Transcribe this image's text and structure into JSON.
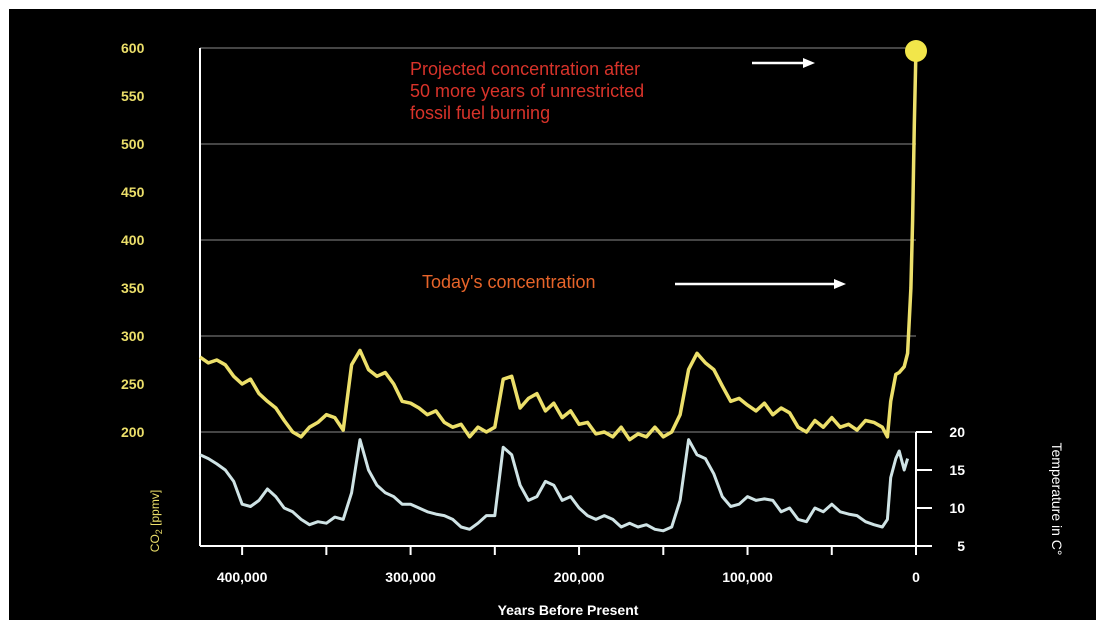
{
  "chart_data": {
    "type": "line",
    "xlabel": "Years Before Present",
    "x_ticks": [
      "400,000",
      "300,000",
      "200,000",
      "100,000",
      "0"
    ],
    "xlim": [
      425000,
      0
    ],
    "co2_axis": {
      "label": "CO2 [ppmv]",
      "label_main": "CO",
      "label_sub": "2",
      "label_rest": " [ppmv]",
      "ticks": [
        "600",
        "550",
        "500",
        "450",
        "400",
        "350",
        "300",
        "250",
        "200"
      ],
      "ylim": [
        200,
        600
      ]
    },
    "temp_axis": {
      "label": "Temperature in C°",
      "ticks": [
        "20",
        "15",
        "10",
        "5"
      ],
      "ylim": [
        5,
        20
      ]
    },
    "grid": true,
    "annotations": {
      "projected_line1": "Projected concentration after",
      "projected_line2": "50 more years of unrestricted",
      "projected_line3": "fossil fuel burning",
      "today": "Today's concentration"
    },
    "projected_point": {
      "x": 0,
      "y": 600
    },
    "series": [
      {
        "axis": "co2",
        "color": "#ecdf6a",
        "x": [
          425000,
          420000,
          415000,
          410000,
          405000,
          400000,
          395000,
          390000,
          385000,
          380000,
          375000,
          370000,
          365000,
          360000,
          355000,
          350000,
          345000,
          340000,
          335000,
          330000,
          325000,
          320000,
          315000,
          310000,
          305000,
          300000,
          295000,
          290000,
          285000,
          280000,
          275000,
          270000,
          265000,
          260000,
          255000,
          250000,
          245000,
          240000,
          235000,
          230000,
          225000,
          220000,
          215000,
          210000,
          205000,
          200000,
          195000,
          190000,
          185000,
          180000,
          175000,
          170000,
          165000,
          160000,
          155000,
          150000,
          145000,
          140000,
          135000,
          130000,
          125000,
          120000,
          115000,
          110000,
          105000,
          100000,
          95000,
          90000,
          85000,
          80000,
          75000,
          70000,
          65000,
          60000,
          55000,
          50000,
          45000,
          40000,
          35000,
          30000,
          25000,
          20000,
          17000,
          15000,
          12000,
          10000,
          7000,
          5000,
          3000,
          2000,
          1000,
          0
        ],
        "y": [
          278,
          272,
          275,
          270,
          258,
          250,
          255,
          240,
          232,
          225,
          212,
          200,
          195,
          205,
          210,
          218,
          215,
          202,
          270,
          285,
          265,
          258,
          262,
          250,
          232,
          230,
          225,
          218,
          222,
          210,
          205,
          208,
          195,
          205,
          200,
          205,
          255,
          258,
          225,
          235,
          240,
          222,
          230,
          215,
          222,
          208,
          210,
          198,
          200,
          195,
          205,
          192,
          198,
          195,
          205,
          195,
          200,
          218,
          265,
          282,
          272,
          265,
          248,
          232,
          235,
          228,
          222,
          230,
          218,
          225,
          220,
          205,
          200,
          212,
          205,
          215,
          205,
          208,
          202,
          212,
          210,
          205,
          195,
          232,
          260,
          262,
          268,
          282,
          350,
          420,
          520,
          600
        ]
      },
      {
        "axis": "temp",
        "color": "#cfe3e5",
        "x": [
          425000,
          420000,
          415000,
          410000,
          405000,
          400000,
          395000,
          390000,
          385000,
          380000,
          375000,
          370000,
          365000,
          360000,
          355000,
          350000,
          345000,
          340000,
          335000,
          330000,
          325000,
          320000,
          315000,
          310000,
          305000,
          300000,
          295000,
          290000,
          285000,
          280000,
          275000,
          270000,
          265000,
          260000,
          255000,
          250000,
          245000,
          240000,
          235000,
          230000,
          225000,
          220000,
          215000,
          210000,
          205000,
          200000,
          195000,
          190000,
          185000,
          180000,
          175000,
          170000,
          165000,
          160000,
          155000,
          150000,
          145000,
          140000,
          135000,
          130000,
          125000,
          120000,
          115000,
          110000,
          105000,
          100000,
          95000,
          90000,
          85000,
          80000,
          75000,
          70000,
          65000,
          60000,
          55000,
          50000,
          45000,
          40000,
          35000,
          30000,
          25000,
          20000,
          17000,
          15000,
          12000,
          10000,
          7000,
          5000
        ],
        "y": [
          17,
          16.5,
          15.8,
          15,
          13.5,
          10.5,
          10.2,
          11,
          12.5,
          11.5,
          10,
          9.5,
          8.5,
          7.8,
          8.2,
          8,
          8.8,
          8.5,
          12,
          19,
          15,
          13,
          12,
          11.5,
          10.5,
          10.5,
          10,
          9.5,
          9.2,
          9,
          8.5,
          7.5,
          7.2,
          8,
          9,
          9,
          18,
          17,
          13,
          11,
          11.5,
          13.5,
          13,
          11,
          11.5,
          10,
          9,
          8.5,
          9,
          8.5,
          7.5,
          8,
          7.5,
          7.8,
          7.2,
          7,
          7.5,
          11,
          19,
          17,
          16.5,
          14.5,
          11.5,
          10.2,
          10.5,
          11.5,
          11,
          11.2,
          11,
          9.5,
          10,
          8.5,
          8.2,
          10,
          9.5,
          10.5,
          9.5,
          9.2,
          9,
          8.2,
          7.8,
          7.5,
          8.5,
          14,
          16.5,
          17.5,
          15,
          16.5
        ]
      }
    ]
  }
}
